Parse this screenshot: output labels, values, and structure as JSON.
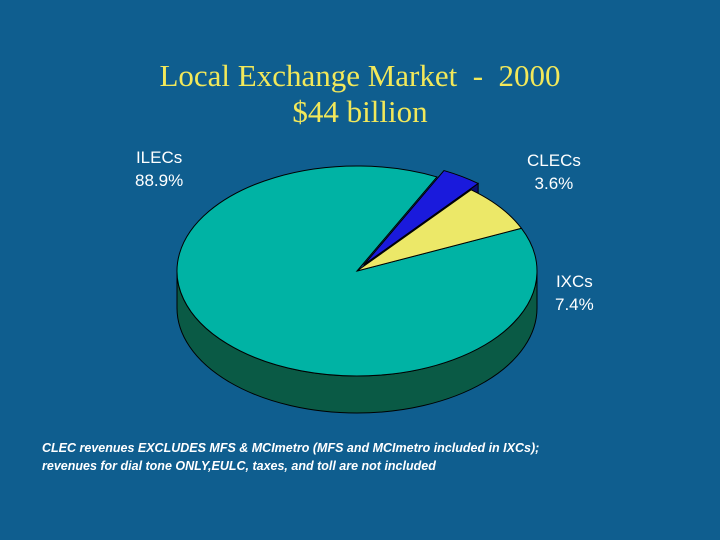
{
  "chart_data": {
    "type": "pie",
    "title": "Local Exchange Market  -  2000",
    "subtitle": "$44 billion",
    "slices": [
      {
        "label": "ILECs",
        "value": 88.9,
        "value_label": "88.9%",
        "color": "#00b3a4",
        "side_color": "#0a5a45"
      },
      {
        "label": "CLECs",
        "value": 3.6,
        "value_label": "3.6%",
        "color": "#1a1adc",
        "side_color": "#0d0d6e"
      },
      {
        "label": "IXCs",
        "value": 7.4,
        "value_label": "7.4%",
        "color": "#ece868",
        "side_color": "#8a8735"
      }
    ],
    "style": "3d-pie",
    "exploded_slice": "CLECs"
  },
  "footnote": {
    "line1": "CLEC revenues EXCLUDES MFS & MCImetro (MFS and MCImetro included in IXCs);",
    "line2": "revenues for dial tone ONLY,EULC, taxes, and toll are not included"
  },
  "colors": {
    "background": "#0f5e8f",
    "title": "#f2e85a",
    "label": "#ffffff"
  }
}
